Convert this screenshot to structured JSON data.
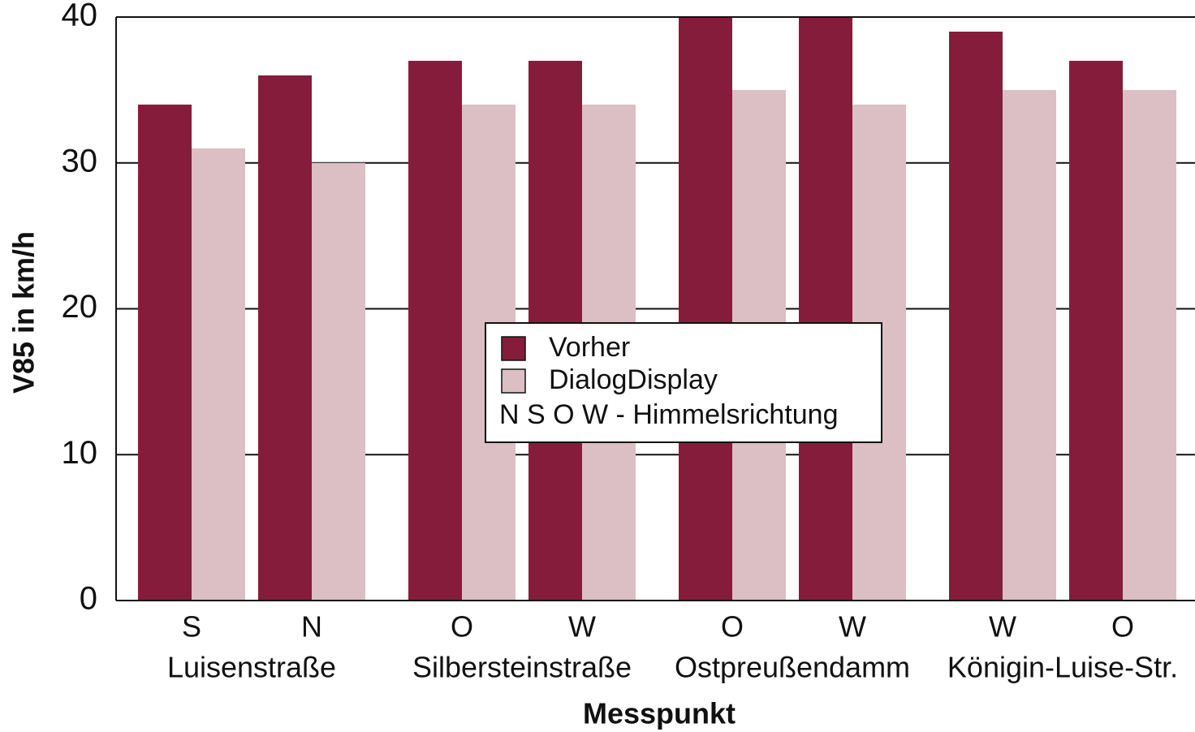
{
  "chart_data": {
    "type": "bar",
    "ylabel": "V85 in km/h",
    "xlabel": "Messpunkt",
    "categories": [
      "S",
      "N",
      "O",
      "W",
      "O",
      "W",
      "W",
      "O"
    ],
    "group_labels": [
      "Luisenstraße",
      "Silbersteinstraße",
      "Ostpreußendamm",
      "Königin-Luise-Str."
    ],
    "series": [
      {
        "name": "Vorher",
        "color": "#861c3b",
        "values": [
          34,
          36,
          37,
          37,
          40,
          40,
          39,
          37
        ]
      },
      {
        "name": "DialogDisplay",
        "color": "#dbbfc5",
        "values": [
          31,
          30,
          34,
          34,
          35,
          34,
          35,
          35
        ]
      }
    ],
    "legend_note": "N S O W - Himmelsrichtung",
    "ylim": [
      0,
      40
    ],
    "yticks": [
      0,
      10,
      20,
      30,
      40
    ],
    "grid": true
  }
}
